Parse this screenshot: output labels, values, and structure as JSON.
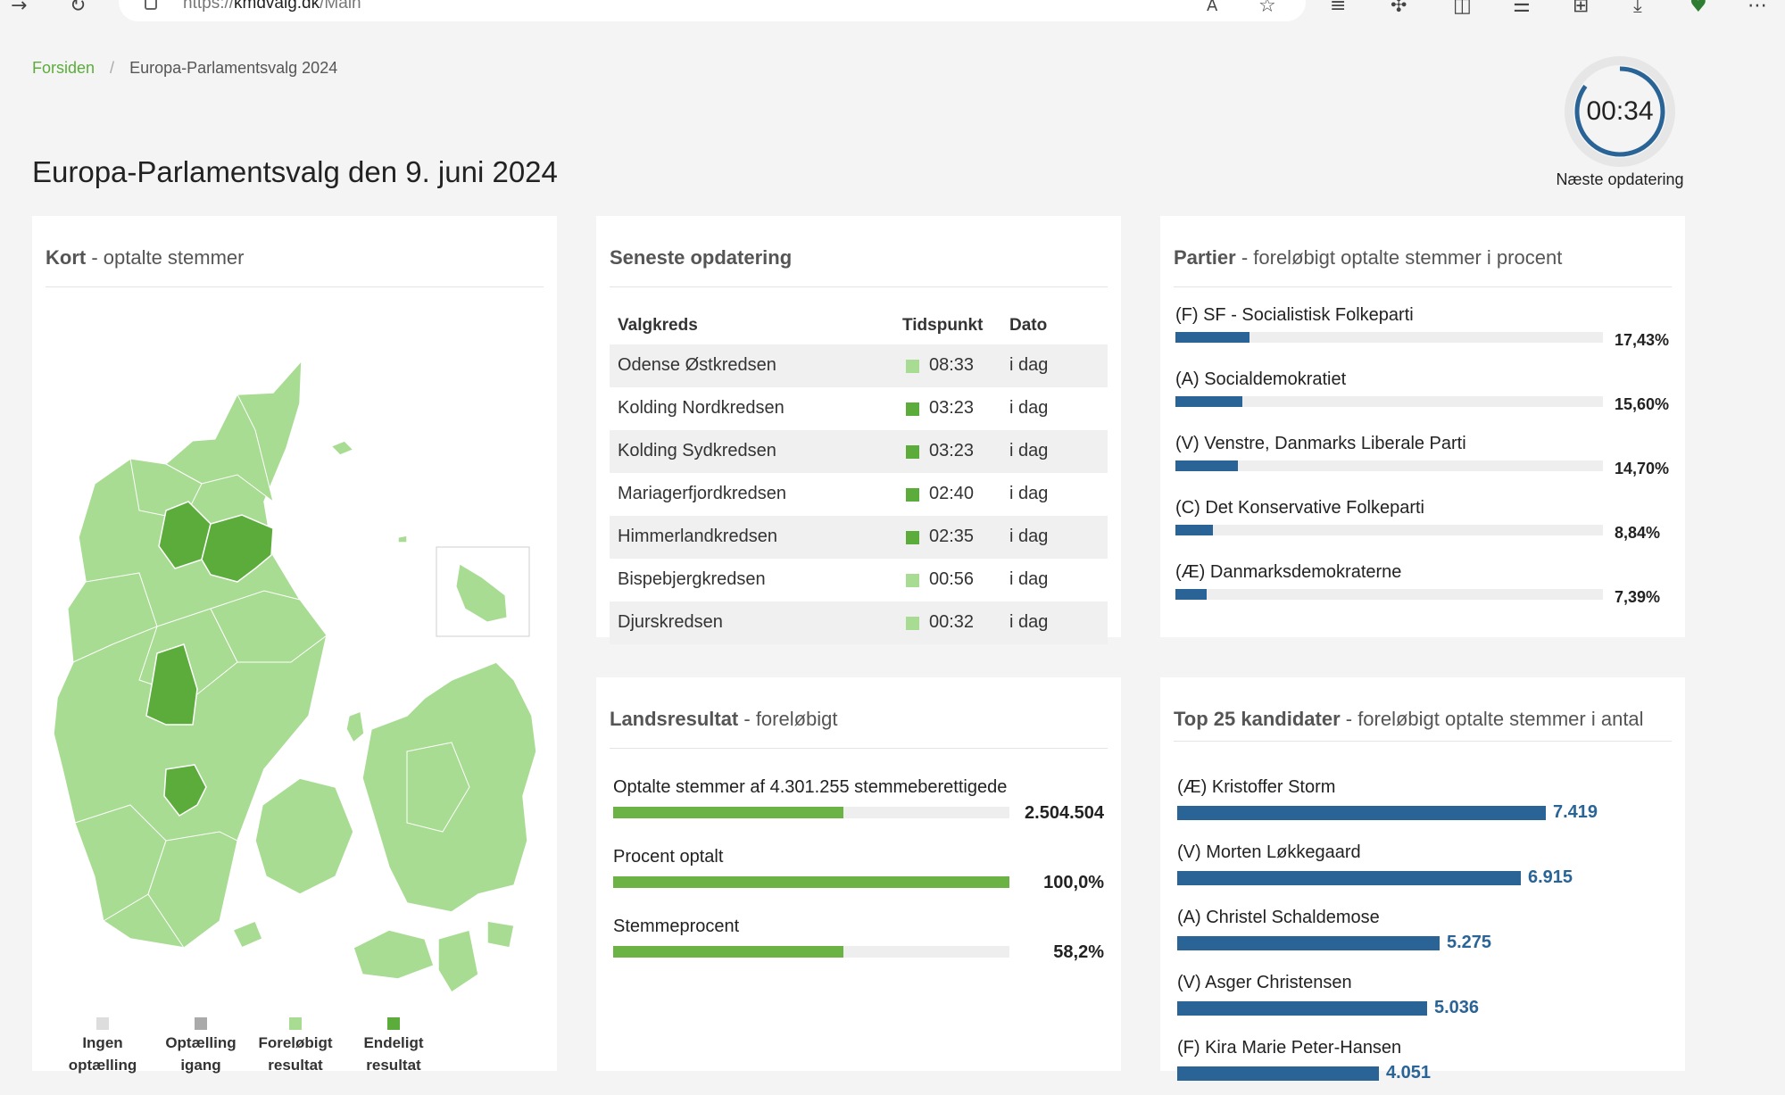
{
  "browser": {
    "url_prefix": "https://",
    "url_domain": "kmdvalg.dk",
    "url_path": "/Main",
    "icons": [
      "back-arrow-icon",
      "reload-icon",
      "read-aloud-icon",
      "favorite-star-icon",
      "reading-view-icon",
      "extensions-icon",
      "split-screen-icon",
      "favorites-list-icon",
      "collections-icon",
      "downloads-icon",
      "browser-essentials-icon",
      "more-menu-icon"
    ]
  },
  "breadcrumb": {
    "home": "Forsiden",
    "separator": "/",
    "current": "Europa-Parlamentsvalg 2024"
  },
  "page_title": "Europa-Parlamentsvalg den 9. juni 2024",
  "timer": {
    "value": "00:34",
    "label": "Næste opdatering",
    "progress": 0.85,
    "color": "#2a6496"
  },
  "map_panel": {
    "title_bold": "Kort",
    "title_rest": " - optalte stemmer",
    "legend": [
      {
        "line1": "Ingen",
        "line2": "optælling",
        "color": "#dddddd"
      },
      {
        "line1": "Optælling",
        "line2": "igang",
        "color": "#aaaaaa"
      },
      {
        "line1": "Foreløbigt",
        "line2": "resultat",
        "color": "#a8dc93"
      },
      {
        "line1": "Endeligt",
        "line2": "resultat",
        "color": "#5cac3c"
      }
    ]
  },
  "latest": {
    "title": "Seneste opdatering",
    "headers": {
      "kreds": "Valgkreds",
      "tid": "Tidspunkt",
      "dato": "Dato"
    },
    "rows": [
      {
        "kreds": "Odense Østkredsen",
        "tid": "08:33",
        "dato": "i dag",
        "status": "Foreløbigt"
      },
      {
        "kreds": "Kolding Nordkredsen",
        "tid": "03:23",
        "dato": "i dag",
        "status": "Endeligt"
      },
      {
        "kreds": "Kolding Sydkredsen",
        "tid": "03:23",
        "dato": "i dag",
        "status": "Endeligt"
      },
      {
        "kreds": "Mariagerfjordkredsen",
        "tid": "02:40",
        "dato": "i dag",
        "status": "Endeligt"
      },
      {
        "kreds": "Himmerlandkredsen",
        "tid": "02:35",
        "dato": "i dag",
        "status": "Endeligt"
      },
      {
        "kreds": "Bispebjergkredsen",
        "tid": "00:56",
        "dato": "i dag",
        "status": "Foreløbigt"
      },
      {
        "kreds": "Djurskredsen",
        "tid": "00:32",
        "dato": "i dag",
        "status": "Foreløbigt"
      }
    ],
    "status_colors": {
      "Foreløbigt": "#a8dc93",
      "Endeligt": "#5cac3c"
    }
  },
  "parties": {
    "title_bold": "Partier",
    "title_rest": " - foreløbigt optalte stemmer i procent",
    "items": [
      {
        "name": "(F) SF - Socialistisk Folkeparti",
        "pct_label": "17,43%",
        "pct": 17.43
      },
      {
        "name": "(A) Socialdemokratiet",
        "pct_label": "15,60%",
        "pct": 15.6
      },
      {
        "name": "(V) Venstre, Danmarks Liberale Parti",
        "pct_label": "14,70%",
        "pct": 14.7
      },
      {
        "name": "(C) Det Konservative Folkeparti",
        "pct_label": "8,84%",
        "pct": 8.84
      },
      {
        "name": "(Æ) Danmarksdemokraterne",
        "pct_label": "7,39%",
        "pct": 7.39
      }
    ]
  },
  "lands": {
    "title_bold": "Landsresultat",
    "title_rest": " - foreløbigt",
    "items": [
      {
        "label": "Optalte stemmer af 4.301.255 stemmeberettigede",
        "value": "2.504.504",
        "fraction": 0.582
      },
      {
        "label": "Procent optalt",
        "value": "100,0%",
        "fraction": 1.0
      },
      {
        "label": "Stemmeprocent",
        "value": "58,2%",
        "fraction": 0.582
      }
    ]
  },
  "candidates": {
    "title_bold": "Top 25 kandidater",
    "title_rest": " - foreløbigt optalte stemmer i antal",
    "max_value": 7419,
    "items": [
      {
        "name": "(Æ) Kristoffer Storm",
        "value_label": "7.419",
        "value": 7419
      },
      {
        "name": "(V) Morten Løkkegaard",
        "value_label": "6.915",
        "value": 6915
      },
      {
        "name": "(A) Christel Schaldemose",
        "value_label": "5.275",
        "value": 5275
      },
      {
        "name": "(V) Asger Christensen",
        "value_label": "5.036",
        "value": 5036
      },
      {
        "name": "(F) Kira Marie Peter-Hansen",
        "value_label": "4.051",
        "value": 4051
      }
    ]
  }
}
